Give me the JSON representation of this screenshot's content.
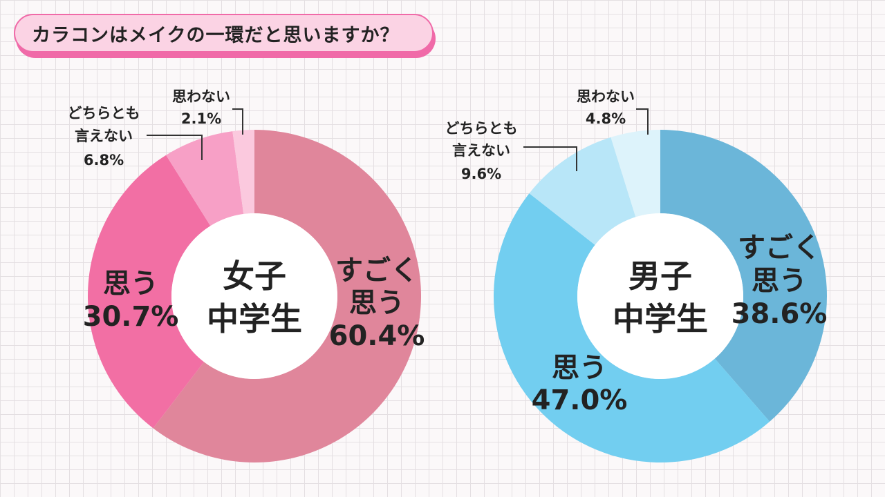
{
  "title": "カラコンはメイクの一環だと思いますか？",
  "chart_data": [
    {
      "type": "pie",
      "title": "女子中学生",
      "title_lines": [
        "女子",
        "中学生"
      ],
      "slices": [
        {
          "label": "すごく思う",
          "label_lines": [
            "すごく",
            "思う"
          ],
          "value_text": "60.4%",
          "value": 60.4,
          "color": "#e0869b"
        },
        {
          "label": "思う",
          "label_lines": [
            "思う"
          ],
          "value_text": "30.7%",
          "value": 30.7,
          "color": "#f26fa4"
        },
        {
          "label": "どちらとも言えない",
          "label_lines": [
            "どちらとも",
            "言えない"
          ],
          "value_text": "6.8%",
          "value": 6.8,
          "color": "#f7a0c6"
        },
        {
          "label": "思わない",
          "label_lines": [
            "思わない"
          ],
          "value_text": "2.1%",
          "value": 2.1,
          "color": "#fbc9de"
        }
      ]
    },
    {
      "type": "pie",
      "title": "男子中学生",
      "title_lines": [
        "男子",
        "中学生"
      ],
      "slices": [
        {
          "label": "すごく思う",
          "label_lines": [
            "すごく",
            "思う"
          ],
          "value_text": "38.6%",
          "value": 38.6,
          "color": "#6bb6d9"
        },
        {
          "label": "思う",
          "label_lines": [
            "思う"
          ],
          "value_text": "47.0%",
          "value": 47.0,
          "color": "#72cef0"
        },
        {
          "label": "どちらとも言えない",
          "label_lines": [
            "どちらとも",
            "言えない"
          ],
          "value_text": "9.6%",
          "value": 9.6,
          "color": "#b8e6f8"
        },
        {
          "label": "思わない",
          "label_lines": [
            "思わない"
          ],
          "value_text": "4.8%",
          "value": 4.8,
          "color": "#ddf3fb"
        }
      ]
    }
  ]
}
